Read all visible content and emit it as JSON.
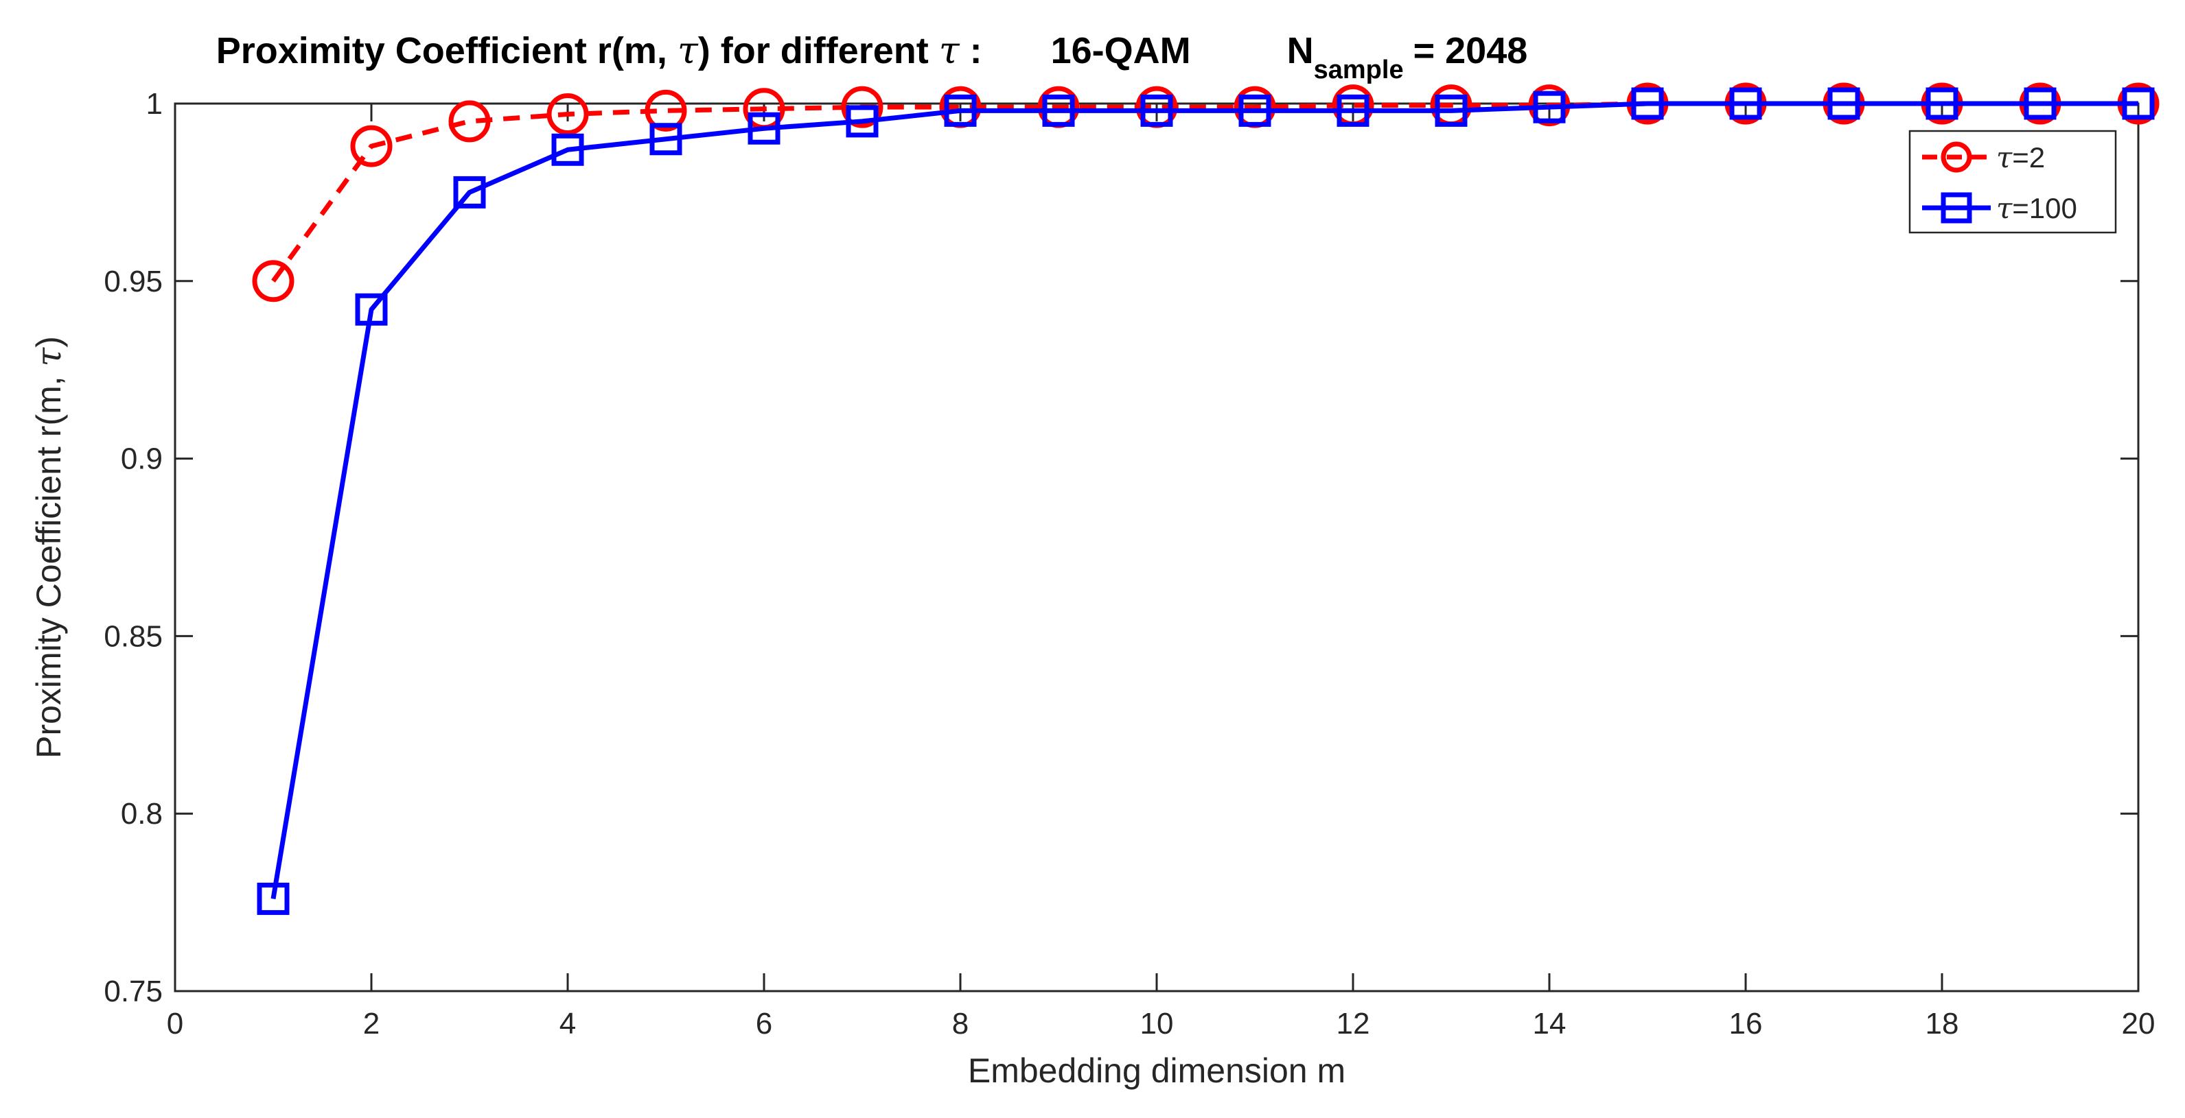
{
  "chart_data": {
    "type": "line",
    "title_parts": {
      "main": "Proximity Coefficient r(m, ",
      "tau": "τ",
      "after_tau": ") for different ",
      "colon": " :",
      "scheme": "16-QAM",
      "n_main": "N",
      "n_sub": "sample",
      "n_value": "= 2048"
    },
    "xlabel": "Embedding dimension m",
    "ylabel_prefix": "Proximity Coefficient r(m, ",
    "ylabel_tau": "τ",
    "ylabel_suffix": ")",
    "xlim": [
      0,
      20
    ],
    "ylim": [
      0.75,
      1.0
    ],
    "xticks": [
      0,
      2,
      4,
      6,
      8,
      10,
      12,
      14,
      16,
      18,
      20
    ],
    "xtick_labels": [
      "0",
      "2",
      "4",
      "6",
      "8",
      "10",
      "12",
      "14",
      "16",
      "18",
      "20"
    ],
    "yticks": [
      0.75,
      0.8,
      0.85,
      0.9,
      0.95,
      1.0
    ],
    "ytick_labels": [
      "0.75",
      "0.8",
      "0.85",
      "0.9",
      "0.95",
      "1"
    ],
    "grid": false,
    "legend_position": "top-right",
    "x": [
      1,
      2,
      3,
      4,
      5,
      6,
      7,
      8,
      9,
      10,
      11,
      12,
      13,
      14,
      15,
      16,
      17,
      18,
      19,
      20
    ],
    "series": [
      {
        "name": "τ=2",
        "legend_symbol": "τ",
        "legend_value": "=2",
        "color": "#ff0000",
        "line_style": "dashed",
        "marker": "circle",
        "values": [
          0.95,
          0.988,
          0.995,
          0.997,
          0.998,
          0.9985,
          0.999,
          0.999,
          0.999,
          0.999,
          0.999,
          0.9995,
          0.9995,
          0.9995,
          1.0,
          1.0,
          1.0,
          1.0,
          1.0,
          1.0
        ]
      },
      {
        "name": "τ=100",
        "legend_symbol": "τ",
        "legend_value": "=100",
        "color": "#0000ff",
        "line_style": "solid",
        "marker": "square",
        "values": [
          0.776,
          0.942,
          0.975,
          0.987,
          0.99,
          0.993,
          0.995,
          0.998,
          0.998,
          0.998,
          0.998,
          0.998,
          0.998,
          0.999,
          1.0,
          1.0,
          1.0,
          1.0,
          1.0,
          1.0
        ]
      }
    ]
  }
}
